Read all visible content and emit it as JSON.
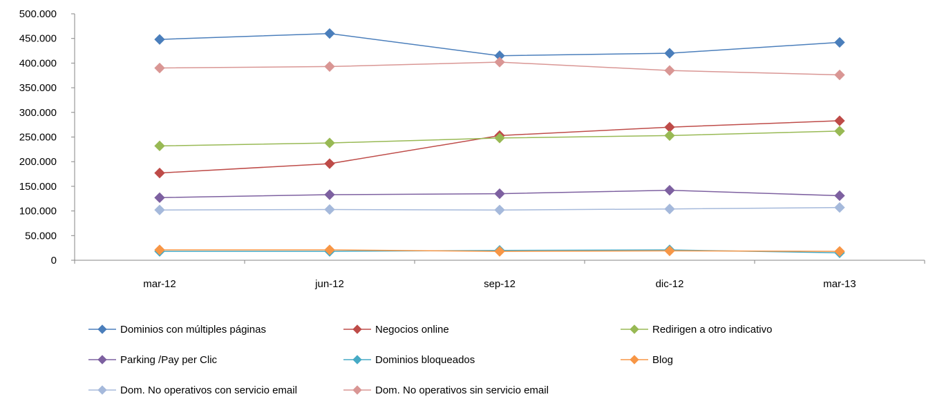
{
  "chart_data": {
    "type": "line",
    "title": "",
    "xlabel": "",
    "ylabel": "",
    "categories": [
      "mar-12",
      "jun-12",
      "sep-12",
      "dic-12",
      "mar-13"
    ],
    "y_ticks": [
      "0",
      "50.000",
      "100.000",
      "150.000",
      "200.000",
      "250.000",
      "300.000",
      "350.000",
      "400.000",
      "450.000",
      "500.000"
    ],
    "ylim": [
      0,
      500000
    ],
    "grid": false,
    "legend_position": "bottom",
    "series": [
      {
        "name": "Dominios con múltiples páginas",
        "color": "#4a7ebb",
        "values": [
          448000,
          460000,
          415000,
          420000,
          442000
        ]
      },
      {
        "name": "Negocios online",
        "color": "#be4b48",
        "values": [
          177000,
          196000,
          253000,
          270000,
          283000
        ]
      },
      {
        "name": "Redirigen a otro indicativo",
        "color": "#98b954",
        "values": [
          232000,
          238000,
          248000,
          253000,
          262000
        ]
      },
      {
        "name": "Parking /Pay per Clic",
        "color": "#7d60a0",
        "values": [
          127000,
          133000,
          135000,
          142000,
          131000
        ]
      },
      {
        "name": "Dominios bloqueados",
        "color": "#46aac5",
        "values": [
          18000,
          18000,
          20000,
          21000,
          15000
        ]
      },
      {
        "name": "Blog",
        "color": "#f79646",
        "values": [
          21000,
          21000,
          18000,
          19000,
          18000
        ]
      },
      {
        "name": "Dom. No operativos con servicio email",
        "color": "#a5b9db",
        "values": [
          102000,
          103000,
          102000,
          104000,
          107000
        ]
      },
      {
        "name": "Dom. No operativos sin servicio email",
        "color": "#d99694",
        "values": [
          390000,
          393000,
          402000,
          385000,
          376000
        ]
      }
    ]
  }
}
